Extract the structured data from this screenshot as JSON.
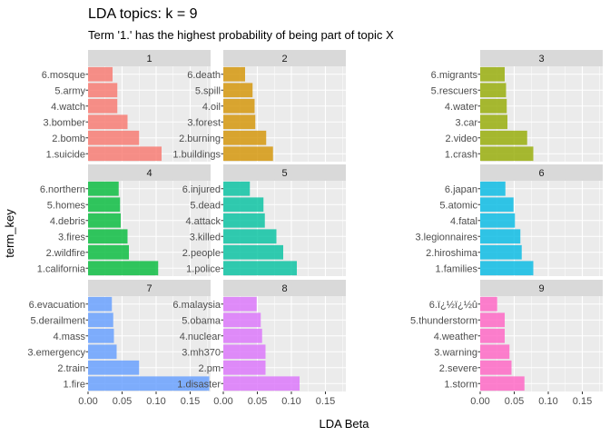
{
  "chart_data": {
    "type": "bar",
    "orientation": "horizontal",
    "title": "LDA topics: k = 9",
    "subtitle": "Term '1.' has the highest probability of being part of topic X",
    "xlabel": "LDA Beta",
    "ylabel": "term_key",
    "xlim": [
      0,
      0.18
    ],
    "xticks": [
      "0.00",
      "0.05",
      "0.10",
      "0.15"
    ],
    "xtick_values": [
      0,
      0.05,
      0.1,
      0.15
    ],
    "grid": true,
    "legend": "none",
    "panels": [
      {
        "label": "1",
        "color": "#F8766D",
        "terms": [
          "6.mosque",
          "5.army",
          "4.watch",
          "3.bomber",
          "2.bomb",
          "1.suicide"
        ],
        "values": [
          0.036,
          0.043,
          0.043,
          0.058,
          0.075,
          0.108
        ]
      },
      {
        "label": "2",
        "color": "#D39200",
        "terms": [
          "6.death",
          "5.spill",
          "4.oil",
          "3.forest",
          "2.burning",
          "1.buildings"
        ],
        "values": [
          0.032,
          0.043,
          0.046,
          0.047,
          0.063,
          0.073
        ]
      },
      {
        "label": "3",
        "color": "#93AA00",
        "terms": [
          "6.migrants",
          "5.rescuers",
          "4.water",
          "3.car",
          "2.video",
          "1.crash"
        ],
        "values": [
          0.036,
          0.038,
          0.039,
          0.04,
          0.069,
          0.078
        ]
      },
      {
        "label": "4",
        "color": "#00BA38",
        "terms": [
          "6.northern",
          "5.homes",
          "4.debris",
          "3.fires",
          "2.wildfire",
          "1.california"
        ],
        "values": [
          0.045,
          0.047,
          0.048,
          0.058,
          0.06,
          0.103
        ]
      },
      {
        "label": "5",
        "color": "#00C19F",
        "terms": [
          "6.injured",
          "5.dead",
          "4.attack",
          "3.killed",
          "2.people",
          "1.police"
        ],
        "values": [
          0.039,
          0.059,
          0.061,
          0.078,
          0.088,
          0.108
        ]
      },
      {
        "label": "6",
        "color": "#00B9E3",
        "terms": [
          "6.japan",
          "5.atomic",
          "4.fatal",
          "3.legionnaires",
          "2.hiroshima",
          "1.families"
        ],
        "values": [
          0.037,
          0.049,
          0.051,
          0.059,
          0.061,
          0.078
        ]
      },
      {
        "label": "7",
        "color": "#619CFF",
        "terms": [
          "6.evacuation",
          "5.derailment",
          "4.mass",
          "3.emergency",
          "2.train",
          "1.fire"
        ],
        "values": [
          0.035,
          0.037,
          0.038,
          0.042,
          0.075,
          0.178
        ]
      },
      {
        "label": "8",
        "color": "#DB72FB",
        "terms": [
          "6.malaysia",
          "5.obama",
          "4.nuclear",
          "3.mh370",
          "2.pm",
          "1.disaster"
        ],
        "values": [
          0.049,
          0.055,
          0.057,
          0.062,
          0.062,
          0.112
        ]
      },
      {
        "label": "9",
        "color": "#FF61C3",
        "terms": [
          "6.ï¿½ï¿½û",
          "5.thunderstorm",
          "4.weather",
          "3.warning",
          "2.severe",
          "1.storm"
        ],
        "values": [
          0.025,
          0.036,
          0.036,
          0.043,
          0.046,
          0.065
        ]
      }
    ]
  },
  "colors": {
    "panel_bg": "#EBEBEB",
    "strip_bg": "#D9D9D9",
    "grid": "#FFFFFF"
  }
}
